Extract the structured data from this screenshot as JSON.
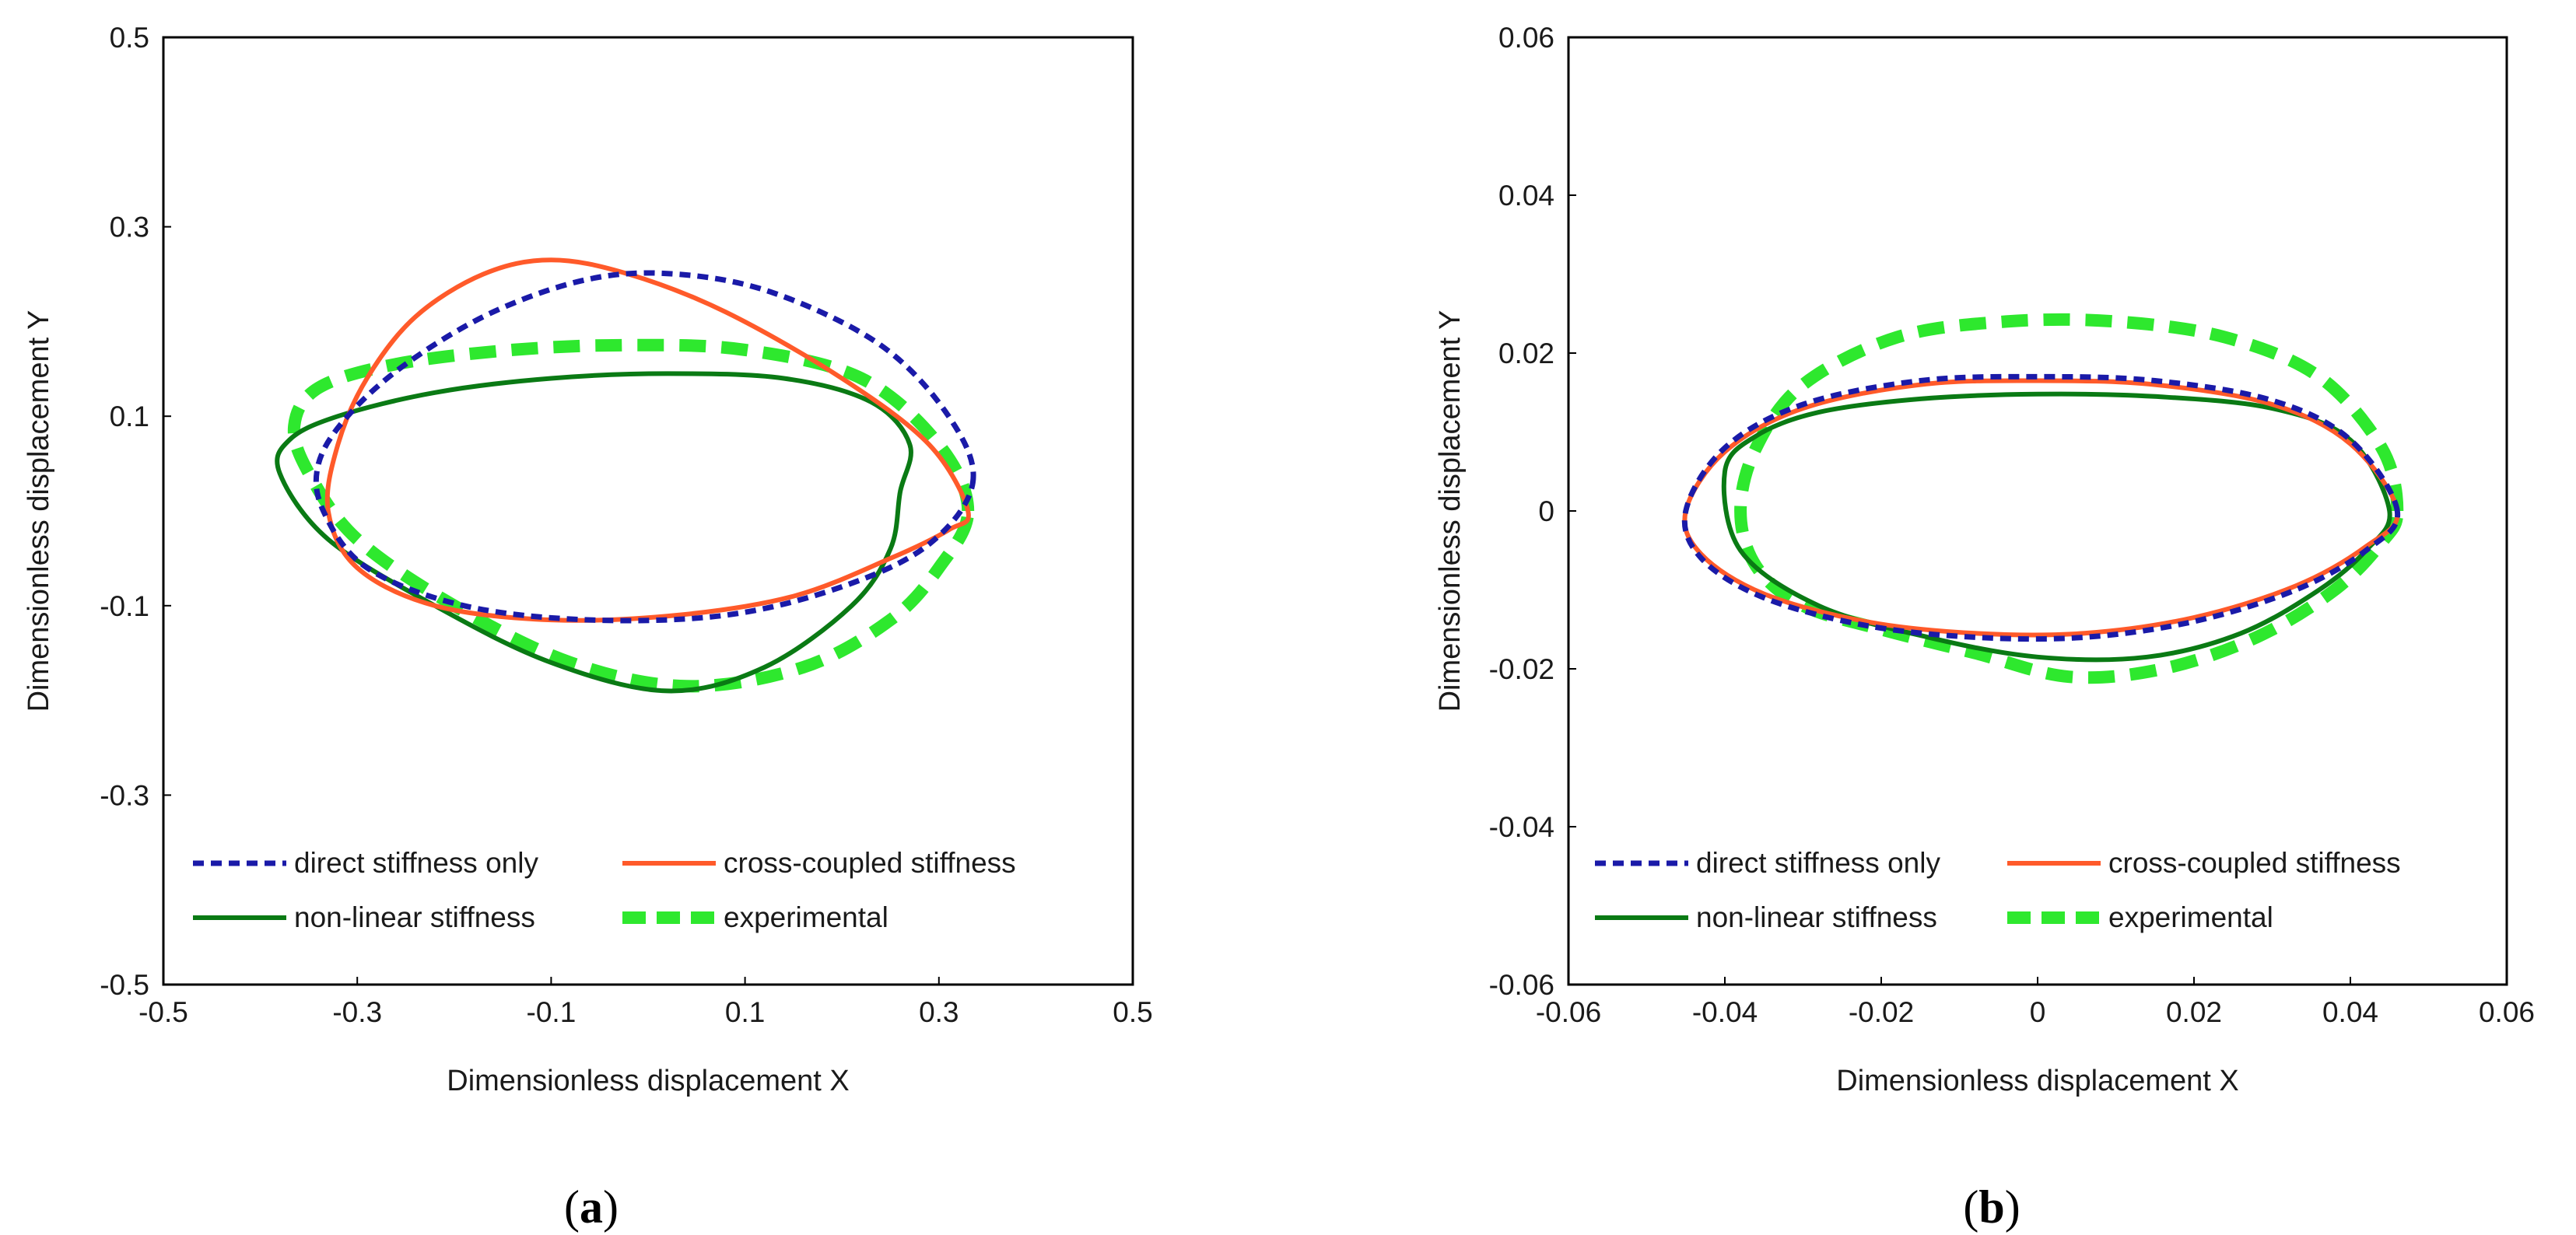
{
  "chart_data": [
    {
      "type": "line",
      "panel": "a",
      "caption_letter": "a",
      "xlabel": "Dimensionless displacement X",
      "ylabel": "Dimensionless displacement Y",
      "xlim": [
        -0.5,
        0.5
      ],
      "ylim": [
        -0.5,
        0.5
      ],
      "xticks": [
        -0.5,
        -0.3,
        -0.1,
        0.1,
        0.3,
        0.5
      ],
      "yticks": [
        -0.5,
        -0.3,
        -0.1,
        0.1,
        0.3,
        0.5
      ],
      "xtick_labels": [
        "-0.5",
        "-0.3",
        "-0.1",
        "0.1",
        "0.3",
        "0.5"
      ],
      "ytick_labels": [
        "-0.5",
        "-0.3",
        "-0.1",
        "0.1",
        "0.3",
        "0.5"
      ],
      "grid": false,
      "legend_position": "bottom",
      "series": [
        {
          "name": "direct stiffness only",
          "color": "#1a1aa8",
          "style": "dotted",
          "x": [
            0.335,
            0.31,
            0.24,
            0.13,
            0.03,
            -0.06,
            -0.16,
            -0.25,
            -0.31,
            -0.34,
            -0.335,
            -0.29,
            -0.19,
            -0.06,
            0.08,
            0.2,
            0.29,
            0.335
          ],
          "y": [
            0.03,
            0.1,
            0.175,
            0.23,
            0.25,
            0.245,
            0.21,
            0.155,
            0.1,
            0.05,
            0.0,
            -0.06,
            -0.1,
            -0.115,
            -0.11,
            -0.08,
            -0.035,
            0.03
          ]
        },
        {
          "name": "cross-coupled stiffness",
          "color": "#ff5a2a",
          "style": "solid",
          "x": [
            0.33,
            0.29,
            0.2,
            0.08,
            -0.02,
            -0.1,
            -0.17,
            -0.24,
            -0.29,
            -0.32,
            -0.33,
            -0.3,
            -0.22,
            -0.1,
            0.03,
            0.15,
            0.25,
            0.31,
            0.33
          ],
          "y": [
            0.0,
            0.07,
            0.14,
            0.21,
            0.25,
            0.265,
            0.25,
            0.205,
            0.14,
            0.07,
            0.0,
            -0.06,
            -0.1,
            -0.115,
            -0.11,
            -0.09,
            -0.05,
            -0.02,
            0.0
          ]
        },
        {
          "name": "non-linear stiffness",
          "color": "#0a7a14",
          "style": "solid",
          "x": [
            0.26,
            0.27,
            0.23,
            0.14,
            0.02,
            -0.1,
            -0.22,
            -0.32,
            -0.37,
            -0.38,
            -0.33,
            -0.22,
            -0.1,
            0.02,
            0.12,
            0.21,
            0.25,
            0.26
          ],
          "y": [
            0.02,
            0.07,
            0.115,
            0.14,
            0.145,
            0.14,
            0.125,
            0.1,
            0.075,
            0.04,
            -0.03,
            -0.1,
            -0.16,
            -0.19,
            -0.165,
            -0.1,
            -0.04,
            0.02
          ]
        },
        {
          "name": "experimental",
          "color": "#2ee82e",
          "style": "dashed",
          "x": [
            0.33,
            0.3,
            0.22,
            0.1,
            -0.02,
            -0.14,
            -0.26,
            -0.34,
            -0.365,
            -0.35,
            -0.3,
            -0.2,
            -0.08,
            0.04,
            0.16,
            0.25,
            0.3,
            0.33
          ],
          "y": [
            0.0,
            0.07,
            0.14,
            0.17,
            0.175,
            0.17,
            0.155,
            0.13,
            0.09,
            0.04,
            -0.03,
            -0.1,
            -0.16,
            -0.185,
            -0.165,
            -0.115,
            -0.06,
            0.0
          ]
        }
      ]
    },
    {
      "type": "line",
      "panel": "b",
      "caption_letter": "b",
      "xlabel": "Dimensionless displacement X",
      "ylabel": "Dimensionless displacement Y",
      "xlim": [
        -0.06,
        0.06
      ],
      "ylim": [
        -0.06,
        0.06
      ],
      "xticks": [
        -0.06,
        -0.04,
        -0.02,
        0,
        0.02,
        0.04,
        0.06
      ],
      "yticks": [
        -0.06,
        -0.04,
        -0.02,
        0,
        0.02,
        0.04,
        0.06
      ],
      "xtick_labels": [
        "-0.06",
        "-0.04",
        "-0.02",
        "0",
        "0.02",
        "0.04",
        "0.06"
      ],
      "ytick_labels": [
        "-0.06",
        "-0.04",
        "-0.02",
        "0",
        "0.02",
        "0.04",
        "0.06"
      ],
      "grid": false,
      "legend_position": "bottom",
      "series": [
        {
          "name": "direct stiffness only",
          "color": "#1a1aa8",
          "style": "dotted",
          "x": [
            0.046,
            0.04,
            0.03,
            0.015,
            0.0,
            -0.015,
            -0.03,
            -0.04,
            -0.045,
            -0.043,
            -0.035,
            -0.022,
            -0.008,
            0.006,
            0.02,
            0.033,
            0.042,
            0.046
          ],
          "y": [
            0.0,
            0.009,
            0.014,
            0.0165,
            0.017,
            0.0165,
            0.0135,
            0.008,
            0.0,
            -0.006,
            -0.011,
            -0.0145,
            -0.016,
            -0.016,
            -0.014,
            -0.01,
            -0.005,
            0.0
          ]
        },
        {
          "name": "cross-coupled stiffness",
          "color": "#ff5a2a",
          "style": "solid",
          "x": [
            0.046,
            0.04,
            0.03,
            0.015,
            0.0,
            -0.015,
            -0.03,
            -0.04,
            -0.045,
            -0.043,
            -0.035,
            -0.022,
            -0.008,
            0.006,
            0.02,
            0.033,
            0.042,
            0.046
          ],
          "y": [
            0.0,
            0.0085,
            0.0135,
            0.016,
            0.0165,
            0.016,
            0.013,
            0.0075,
            0.0,
            -0.0055,
            -0.0105,
            -0.014,
            -0.0155,
            -0.0155,
            -0.0135,
            -0.0095,
            -0.0045,
            0.0
          ]
        },
        {
          "name": "non-linear stiffness",
          "color": "#0a7a14",
          "style": "solid",
          "x": [
            0.045,
            0.04,
            0.03,
            0.015,
            0.0,
            -0.015,
            -0.028,
            -0.036,
            -0.04,
            -0.038,
            -0.028,
            -0.014,
            0.0,
            0.014,
            0.026,
            0.036,
            0.042,
            0.045
          ],
          "y": [
            0.0,
            0.009,
            0.013,
            0.0145,
            0.0148,
            0.0142,
            0.0125,
            0.0095,
            0.005,
            -0.005,
            -0.012,
            -0.016,
            -0.0185,
            -0.0185,
            -0.0155,
            -0.01,
            -0.005,
            0.0
          ]
        },
        {
          "name": "experimental",
          "color": "#2ee82e",
          "style": "dashed",
          "x": [
            0.046,
            0.044,
            0.036,
            0.024,
            0.01,
            -0.004,
            -0.018,
            -0.03,
            -0.036,
            -0.038,
            -0.036,
            -0.03,
            -0.02,
            -0.008,
            0.004,
            0.016,
            0.028,
            0.038,
            0.044,
            0.046
          ],
          "y": [
            0.0,
            0.008,
            0.017,
            0.022,
            0.024,
            0.024,
            0.022,
            0.016,
            0.008,
            0.0,
            -0.007,
            -0.012,
            -0.015,
            -0.018,
            -0.021,
            -0.02,
            -0.016,
            -0.01,
            -0.004,
            0.0
          ]
        }
      ]
    }
  ]
}
